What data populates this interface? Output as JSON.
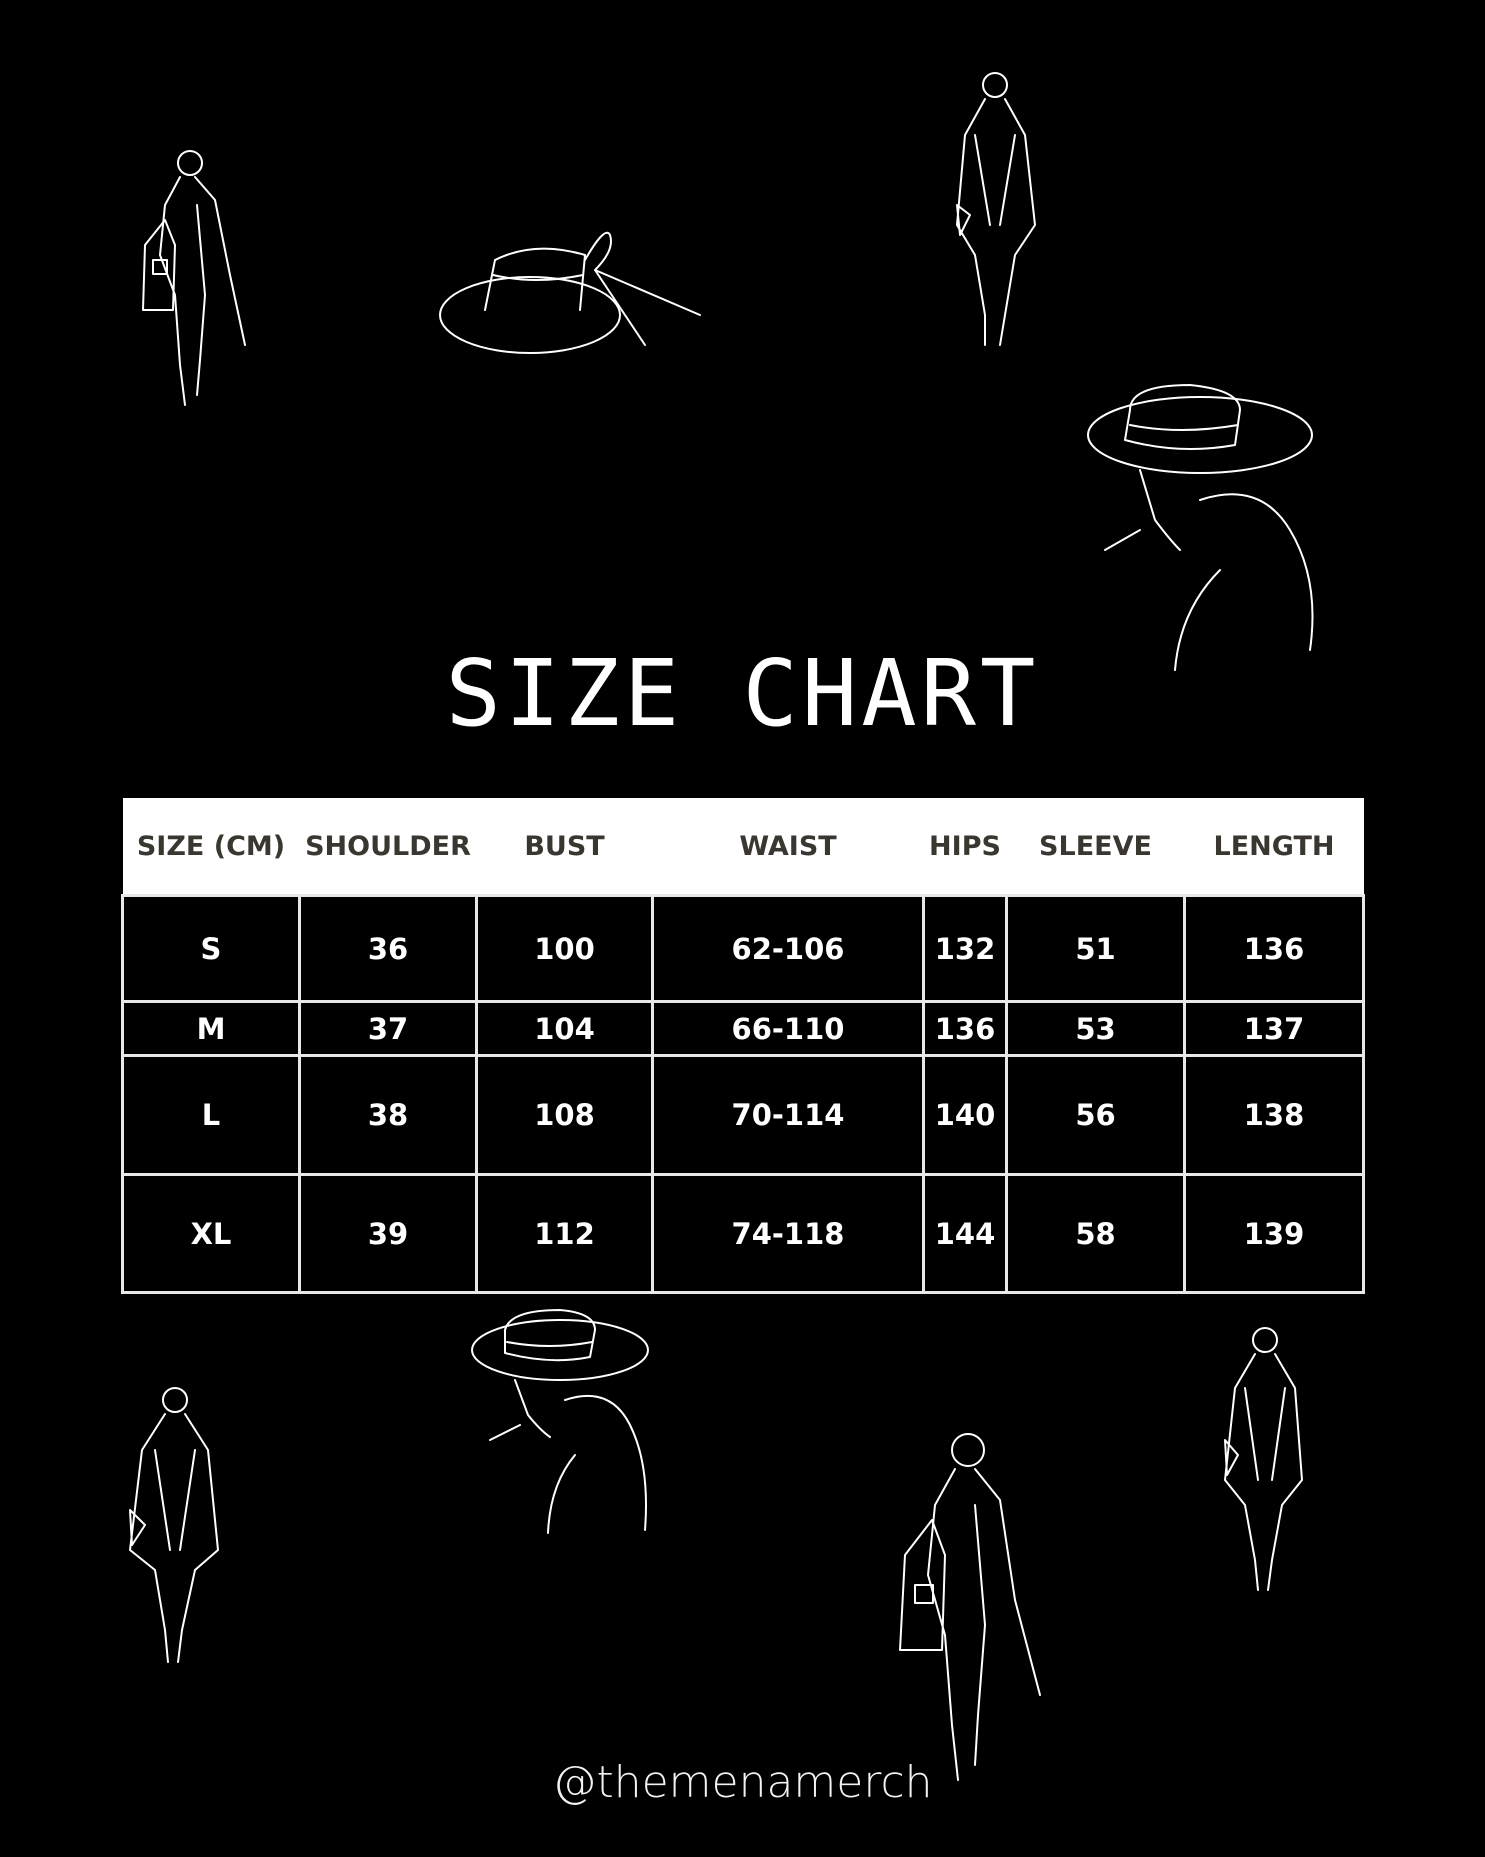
{
  "title": "SIZE CHART",
  "table": {
    "headers": [
      "SIZE (CM)",
      "SHOULDER",
      "BUST",
      "WAIST",
      "HIPS",
      "SLEEVE",
      "LENGTH"
    ],
    "rows": [
      [
        "S",
        "36",
        "100",
        "62-106",
        "132",
        "51",
        "136"
      ],
      [
        "M",
        "37",
        "104",
        "66-110",
        "136",
        "53",
        "137"
      ],
      [
        "L",
        "38",
        "108",
        "70-114",
        "140",
        "56",
        "138"
      ],
      [
        "XL",
        "39",
        "112",
        "74-118",
        "144",
        "58",
        "139"
      ]
    ]
  },
  "handle": "@themenamerch",
  "colors": {
    "background": "#000000",
    "header_bg": "#ffffff",
    "header_text": "#3a3630",
    "text": "#ffffff"
  },
  "illustrations": [
    "woman-walking-with-bag",
    "wide-brim-hat-with-ribbon",
    "woman-walking-in-coat",
    "woman-in-hat-portrait"
  ]
}
